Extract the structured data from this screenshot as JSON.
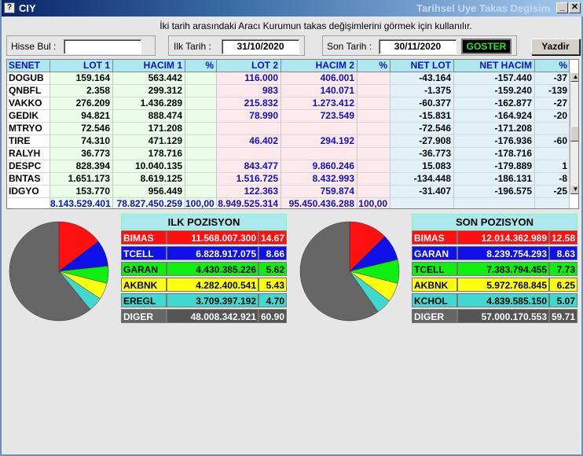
{
  "window": {
    "app_code": "CIY",
    "title": "Tarihsel Uye Takas Degisim",
    "icon": "app-icon"
  },
  "info": "İki tarih arasındaki  Aracı Kurumun takas değişimlerini görmek için kullanılır.",
  "form": {
    "hisse_label": "Hisse Bul :",
    "hisse_value": "",
    "ilk_label": "Ilk Tarih :",
    "ilk_value": "31/10/2020",
    "son_label": "Son Tarih :",
    "son_value": "30/11/2020",
    "goster": "GOSTER",
    "yazdir": "Yazdir"
  },
  "table": {
    "headers": [
      "SENET",
      "LOT 1",
      "HACIM 1",
      "%",
      "LOT 2",
      "HACIM 2",
      "%",
      "NET LOT",
      "NET HACIM",
      "%"
    ],
    "rows": [
      [
        "DOGUB",
        "159.164",
        "563.442",
        "",
        "116.000",
        "406.001",
        "",
        "-43.164",
        "-157.440",
        "-37"
      ],
      [
        "QNBFL",
        "2.358",
        "299.312",
        "",
        "983",
        "140.071",
        "",
        "-1.375",
        "-159.240",
        "-139"
      ],
      [
        "VAKKO",
        "276.209",
        "1.436.289",
        "",
        "215.832",
        "1.273.412",
        "",
        "-60.377",
        "-162.877",
        "-27"
      ],
      [
        "GEDIK",
        "94.821",
        "888.474",
        "",
        "78.990",
        "723.549",
        "",
        "-15.831",
        "-164.924",
        "-20"
      ],
      [
        "MTRYO",
        "72.546",
        "171.208",
        "",
        "",
        "",
        "",
        "-72.546",
        "-171.208",
        ""
      ],
      [
        "TIRE",
        "74.310",
        "471.129",
        "",
        "46.402",
        "294.192",
        "",
        "-27.908",
        "-176.936",
        "-60"
      ],
      [
        "RALYH",
        "36.773",
        "178.716",
        "",
        "",
        "",
        "",
        "-36.773",
        "-178.716",
        ""
      ],
      [
        "DESPC",
        "828.394",
        "10.040.135",
        "",
        "843.477",
        "9.860.246",
        "",
        "15.083",
        "-179.889",
        "1"
      ],
      [
        "BNTAS",
        "1.651.173",
        "8.619.125",
        "",
        "1.516.725",
        "8.432.993",
        "",
        "-134.448",
        "-186.131",
        "-8"
      ],
      [
        "IDGYO",
        "153.770",
        "956.449",
        "",
        "122.363",
        "759.874",
        "",
        "-31.407",
        "-196.575",
        "-25"
      ]
    ],
    "totals": [
      "",
      "8.143.529.401",
      "78.827.450.259",
      "100,00",
      "8.949.525.314",
      "95.450.436.288",
      "100,00",
      "",
      "",
      ""
    ]
  },
  "ilk": {
    "title": "ILK POZISYON",
    "rows": [
      {
        "name": "BIMAS",
        "value": "11.568.007.300",
        "pct": "14.67",
        "color": "#ff1010",
        "text": "#ffffff"
      },
      {
        "name": "TCELL",
        "value": "6.828.917.075",
        "pct": "8.66",
        "color": "#1010e8",
        "text": "#ffffff"
      },
      {
        "name": "GARAN",
        "value": "4.430.385.226",
        "pct": "5.62",
        "color": "#10f010",
        "text": "#000000"
      },
      {
        "name": "AKBNK",
        "value": "4.282.400.541",
        "pct": "5.43",
        "color": "#ffff10",
        "text": "#000000"
      },
      {
        "name": "EREGL",
        "value": "3.709.397.192",
        "pct": "4.70",
        "color": "#40d8d0",
        "text": "#000000"
      },
      {
        "name": "DIGER",
        "value": "48.008.342.921",
        "pct": "60.90",
        "color": "#666666",
        "text": "#ffffff"
      }
    ]
  },
  "son": {
    "title": "SON POZISYON",
    "rows": [
      {
        "name": "BIMAS",
        "value": "12.014.362.989",
        "pct": "12.58",
        "color": "#ff1010",
        "text": "#ffffff"
      },
      {
        "name": "GARAN",
        "value": "8.239.754.293",
        "pct": "8.63",
        "color": "#1010e8",
        "text": "#ffffff"
      },
      {
        "name": "TCELL",
        "value": "7.383.794.455",
        "pct": "7.73",
        "color": "#10f010",
        "text": "#000000"
      },
      {
        "name": "AKBNK",
        "value": "5.972.768.845",
        "pct": "6.25",
        "color": "#ffff10",
        "text": "#000000"
      },
      {
        "name": "KCHOL",
        "value": "4.839.585.150",
        "pct": "5.07",
        "color": "#40d8d0",
        "text": "#000000"
      },
      {
        "name": "DIGER",
        "value": "57.000.170.553",
        "pct": "59.71",
        "color": "#666666",
        "text": "#ffffff"
      }
    ]
  }
}
